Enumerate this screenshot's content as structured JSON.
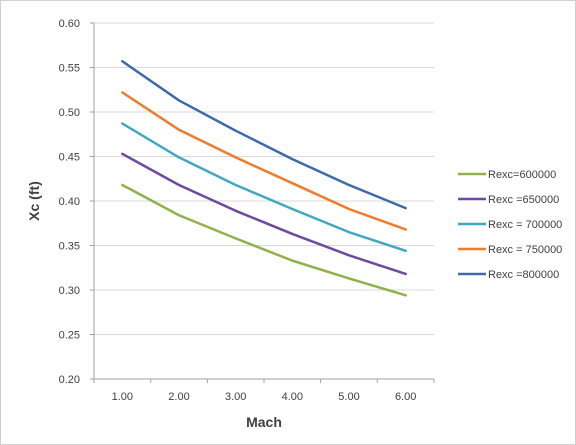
{
  "chart_data": {
    "type": "line",
    "title": "",
    "xlabel": "Mach",
    "ylabel": "Xc (ft)",
    "x": [
      1,
      2,
      3,
      4,
      5,
      6
    ],
    "x_tick_labels": [
      "1.00",
      "2.00",
      "3.00",
      "4.00",
      "5.00",
      "6.00"
    ],
    "y_tick_labels": [
      "0.20",
      "0.25",
      "0.30",
      "0.35",
      "0.40",
      "0.45",
      "0.50",
      "0.55",
      "0.60"
    ],
    "ylim": [
      0.2,
      0.6
    ],
    "grid": "horizontal",
    "legend_position": "right",
    "series": [
      {
        "name": "Rexc=600000",
        "color": "#8db34a",
        "values": [
          0.418,
          0.384,
          0.358,
          0.333,
          0.313,
          0.294
        ]
      },
      {
        "name": "Rexc =650000",
        "color": "#7048a0",
        "values": [
          0.453,
          0.418,
          0.389,
          0.363,
          0.339,
          0.318
        ]
      },
      {
        "name": "Rexc = 700000",
        "color": "#40a8c0",
        "values": [
          0.487,
          0.449,
          0.418,
          0.391,
          0.365,
          0.344
        ]
      },
      {
        "name": "Rexc = 750000",
        "color": "#f07b2a",
        "values": [
          0.522,
          0.48,
          0.449,
          0.42,
          0.391,
          0.368
        ]
      },
      {
        "name": "Rexc =800000",
        "color": "#3d6aa8",
        "values": [
          0.557,
          0.513,
          0.479,
          0.447,
          0.418,
          0.392
        ]
      }
    ]
  }
}
